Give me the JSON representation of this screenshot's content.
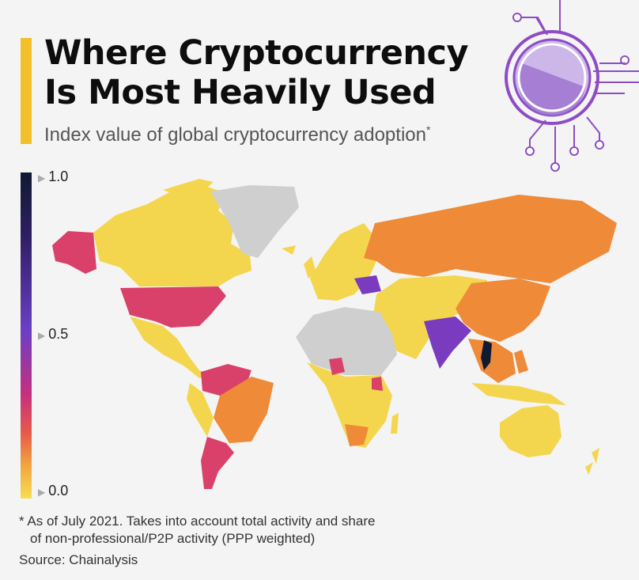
{
  "title_line1": "Where Cryptocurrency",
  "title_line2": "Is Most Heavily Used",
  "subtitle": "Index value of global cryptocurrency adoption",
  "subtitle_mark": "*",
  "legend": {
    "max": "1.0",
    "mid": "0.5",
    "min": "0.0"
  },
  "footnote_line1": "* As of July 2021. Takes into account total activity and share",
  "footnote_line2": "of non-professional/P2P activity (PPP weighted)",
  "source": "Source: Chainalysis",
  "colors": {
    "accent": "#f2c028",
    "no_data": "#cfcfcf",
    "low": "#f4d64e",
    "mid_low": "#ee8a38",
    "mid": "#d9406a",
    "mid_high": "#7a3bbf",
    "high": "#111a33",
    "deco": "#8e4cc4"
  },
  "map_regions": [
    {
      "name": "north-america-canada",
      "level": "low"
    },
    {
      "name": "united-states",
      "level": "mid"
    },
    {
      "name": "alaska",
      "level": "mid"
    },
    {
      "name": "greenland",
      "level": "no_data"
    },
    {
      "name": "mexico-central-america",
      "level": "low"
    },
    {
      "name": "venezuela-colombia",
      "level": "mid"
    },
    {
      "name": "brazil",
      "level": "mid_low"
    },
    {
      "name": "argentina",
      "level": "mid"
    },
    {
      "name": "south-america-other",
      "level": "low"
    },
    {
      "name": "europe",
      "level": "low"
    },
    {
      "name": "ukraine",
      "level": "mid_high"
    },
    {
      "name": "russia",
      "level": "mid_low"
    },
    {
      "name": "china",
      "level": "mid_low"
    },
    {
      "name": "india",
      "level": "mid_high"
    },
    {
      "name": "vietnam",
      "level": "high"
    },
    {
      "name": "southeast-asia",
      "level": "mid_low"
    },
    {
      "name": "africa-north",
      "level": "no_data"
    },
    {
      "name": "africa-sub",
      "level": "low"
    },
    {
      "name": "nigeria",
      "level": "mid"
    },
    {
      "name": "kenya",
      "level": "mid"
    },
    {
      "name": "south-africa",
      "level": "mid_low"
    },
    {
      "name": "middle-east-central-asia",
      "level": "low"
    },
    {
      "name": "australia",
      "level": "low"
    },
    {
      "name": "new-zealand",
      "level": "low"
    }
  ]
}
